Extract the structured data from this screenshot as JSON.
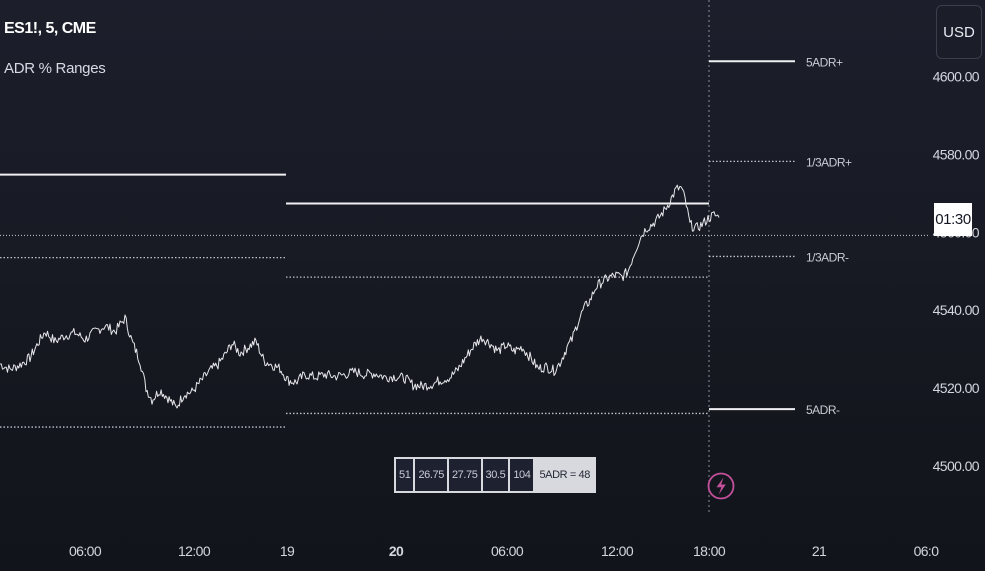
{
  "legend": {
    "symbol": "ES1!, 5, CME",
    "indicator": "ADR % Ranges"
  },
  "currency_button": "USD",
  "time_badge": "01:30",
  "stats_table": [
    "51",
    "26.75",
    "27.75",
    "30.5",
    "104",
    "5ADR = 48"
  ],
  "level_labels": {
    "adr_plus": "5ADR+",
    "third_plus": "1/3ADR+",
    "third_minus": "1/3ADR-",
    "adr_minus": "5ADR-"
  },
  "colors": {
    "background": "#161821",
    "price_line": "#e6e6ea",
    "level_line": "#f0f0f3",
    "dotted_line": "#bfc3cc",
    "lightning": "#c2509a"
  },
  "chart_data": {
    "type": "line",
    "ylabel": "",
    "xlabel": "",
    "ylim": [
      4488,
      4628
    ],
    "grid": false,
    "y_ticks": [
      "4500.00",
      "4520.00",
      "4540.00",
      "4560.00",
      "4580.00",
      "4600.00"
    ],
    "x_ticks": [
      "06:00",
      "12:00",
      "19",
      "20",
      "06:00",
      "12:00",
      "18:00",
      "21",
      "06:0"
    ],
    "x_ticks_bold": [
      false,
      false,
      false,
      true,
      false,
      false,
      false,
      false,
      false
    ],
    "session_levels": [
      {
        "name": "prior session high",
        "value": 4574.8,
        "x_range": [
          "start",
          "19"
        ]
      },
      {
        "name": "prior session upper dotted",
        "value": 4553.5,
        "x_range": [
          "start",
          "19"
        ]
      },
      {
        "name": "prior session lower dotted",
        "value": 4510.0,
        "x_range": [
          "start",
          "19"
        ]
      },
      {
        "name": "session high",
        "value": 4567.4,
        "x_range": [
          "19",
          "18:00"
        ]
      },
      {
        "name": "current price",
        "value": 4559.2,
        "x_range": [
          "start",
          "end"
        ]
      },
      {
        "name": "session upper dotted",
        "value": 4548.5,
        "x_range": [
          "19",
          "18:00"
        ]
      },
      {
        "name": "session lower dotted",
        "value": 4513.5,
        "x_range": [
          "19",
          "18:00"
        ]
      }
    ],
    "projected_levels": [
      {
        "label": "5ADR+",
        "value": 4603.9
      },
      {
        "label": "1/3ADR+",
        "value": 4578.2
      },
      {
        "label": "1/3ADR-",
        "value": 4553.8
      },
      {
        "label": "5ADR-",
        "value": 4514.6
      }
    ],
    "series": [
      {
        "points": [
          [
            0,
            4526.2
          ],
          [
            10,
            4524.8
          ],
          [
            20,
            4526.0
          ],
          [
            30,
            4527.8
          ],
          [
            38,
            4531.5
          ],
          [
            45,
            4534.5
          ],
          [
            55,
            4532.0
          ],
          [
            65,
            4533.5
          ],
          [
            75,
            4534.2
          ],
          [
            85,
            4532.5
          ],
          [
            95,
            4534.5
          ],
          [
            105,
            4536.0
          ],
          [
            115,
            4534.5
          ],
          [
            125,
            4538.0
          ],
          [
            132,
            4532.0
          ],
          [
            140,
            4527.0
          ],
          [
            146,
            4520.0
          ],
          [
            152,
            4517.0
          ],
          [
            160,
            4519.5
          ],
          [
            168,
            4517.5
          ],
          [
            176,
            4515.0
          ],
          [
            184,
            4518.5
          ],
          [
            192,
            4519.0
          ],
          [
            200,
            4521.5
          ],
          [
            210,
            4524.5
          ],
          [
            218,
            4526.0
          ],
          [
            225,
            4528.5
          ],
          [
            232,
            4531.5
          ],
          [
            240,
            4529.0
          ],
          [
            248,
            4530.5
          ],
          [
            256,
            4532.0
          ],
          [
            264,
            4527.0
          ],
          [
            272,
            4526.0
          ],
          [
            280,
            4525.0
          ],
          [
            288,
            4522.0
          ],
          [
            296,
            4521.5
          ],
          [
            305,
            4523.5
          ],
          [
            315,
            4522.8
          ],
          [
            325,
            4523.5
          ],
          [
            335,
            4523.0
          ],
          [
            345,
            4523.5
          ],
          [
            355,
            4524.2
          ],
          [
            365,
            4523.5
          ],
          [
            375,
            4523.8
          ],
          [
            385,
            4522.8
          ],
          [
            395,
            4523.0
          ],
          [
            405,
            4522.5
          ],
          [
            413,
            4520.8
          ],
          [
            422,
            4520.5
          ],
          [
            432,
            4521.0
          ],
          [
            440,
            4522.0
          ],
          [
            450,
            4522.8
          ],
          [
            458,
            4524.8
          ],
          [
            466,
            4528.0
          ],
          [
            474,
            4531.0
          ],
          [
            482,
            4533.0
          ],
          [
            490,
            4531.5
          ],
          [
            498,
            4529.5
          ],
          [
            506,
            4531.0
          ],
          [
            514,
            4529.5
          ],
          [
            522,
            4530.5
          ],
          [
            530,
            4528.0
          ],
          [
            538,
            4525.0
          ],
          [
            546,
            4525.5
          ],
          [
            554,
            4524.5
          ],
          [
            560,
            4526.5
          ],
          [
            567,
            4530.5
          ],
          [
            572,
            4532.5
          ],
          [
            578,
            4537.0
          ],
          [
            584,
            4540.5
          ],
          [
            590,
            4542.5
          ],
          [
            596,
            4546.0
          ],
          [
            603,
            4547.5
          ],
          [
            610,
            4548.5
          ],
          [
            616,
            4549.0
          ],
          [
            622,
            4548.5
          ],
          [
            628,
            4550.0
          ],
          [
            634,
            4554.5
          ],
          [
            640,
            4558.5
          ],
          [
            646,
            4561.0
          ],
          [
            652,
            4562.0
          ],
          [
            658,
            4563.5
          ],
          [
            664,
            4565.5
          ],
          [
            670,
            4568.0
          ],
          [
            676,
            4571.0
          ],
          [
            681,
            4571.5
          ],
          [
            685,
            4568.5
          ],
          [
            690,
            4562.0
          ],
          [
            696,
            4561.0
          ],
          [
            702,
            4562.0
          ],
          [
            708,
            4563.5
          ],
          [
            714,
            4564.5
          ],
          [
            719,
            4563.8
          ]
        ]
      }
    ]
  }
}
